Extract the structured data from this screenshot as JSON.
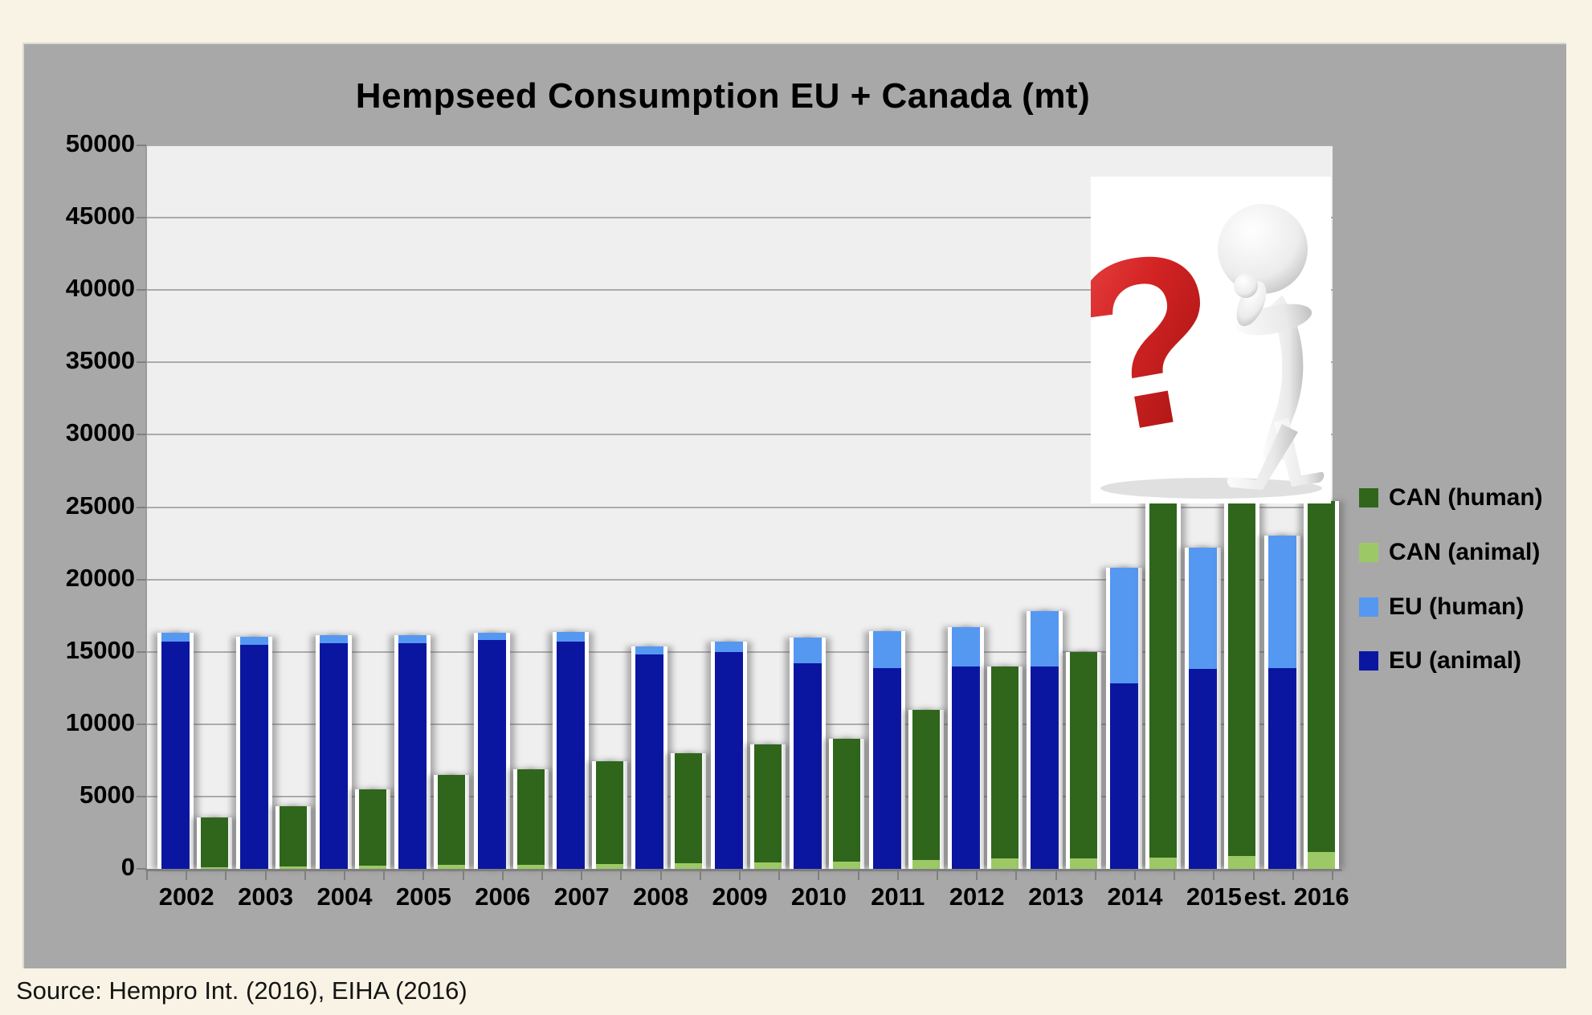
{
  "chart": {
    "title": "Hempseed Consumption EU + Canada (mt)",
    "source": "Source: Hempro Int. (2016), EIHA (2016)"
  },
  "chart_data": {
    "type": "bar",
    "stacked": true,
    "title": "Hempseed Consumption EU + Canada (mt)",
    "categories": [
      "2002",
      "2003",
      "2004",
      "2005",
      "2006",
      "2007",
      "2008",
      "2009",
      "2010",
      "2011",
      "2012",
      "2013",
      "2014",
      "2015",
      "est. 2016"
    ],
    "series": [
      {
        "name": "EU (animal)",
        "group": "EU",
        "color": "#0A16A0",
        "values": [
          15700,
          15500,
          15600,
          15600,
          15800,
          15700,
          14800,
          15000,
          14200,
          13900,
          14000,
          14000,
          12800,
          13800,
          13900
        ]
      },
      {
        "name": "EU (human)",
        "group": "EU",
        "color": "#5598F2",
        "values": [
          600,
          550,
          550,
          550,
          500,
          650,
          550,
          700,
          1800,
          2500,
          2700,
          3800,
          8000,
          8400,
          9150
        ]
      },
      {
        "name": "CAN (animal)",
        "group": "CAN",
        "color": "#9CC966",
        "values": [
          100,
          150,
          200,
          250,
          300,
          350,
          400,
          450,
          500,
          600,
          700,
          700,
          800,
          900,
          1150
        ]
      },
      {
        "name": "CAN (human)",
        "group": "CAN",
        "color": "#2F661C",
        "values": [
          3450,
          4200,
          5300,
          6250,
          6600,
          7100,
          7600,
          8150,
          8500,
          10400,
          13300,
          14300,
          24600,
          24500,
          24250
        ]
      }
    ],
    "legend": [
      {
        "label": "CAN (human)",
        "color": "#2F661C"
      },
      {
        "label": "CAN (animal)",
        "color": "#9CC966"
      },
      {
        "label": "EU (human)",
        "color": "#5598F2"
      },
      {
        "label": "EU (animal)",
        "color": "#0A16A0"
      }
    ],
    "legend_position": "right",
    "ylim": [
      0,
      50000
    ],
    "ytick_step": 5000,
    "ytick_labels": [
      "0",
      "5000",
      "10000",
      "15000",
      "20000",
      "25000",
      "30000",
      "35000",
      "40000",
      "45000",
      "50000"
    ],
    "grid": "horizontal",
    "annotation": "White question-mark clipart box covers the tops of the 2014, 2015 and est. 2016 Canada bars (values uncertain)"
  },
  "colors": {
    "page_background": "#F8F3E4",
    "panel_background": "#A8A8A8",
    "plot_background": "#EFEFEF",
    "gridline": "#ABABAB",
    "axis": "#7F7F7F"
  }
}
